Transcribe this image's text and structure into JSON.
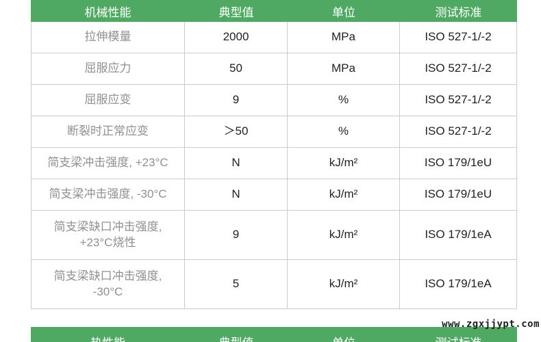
{
  "table_mechanical": {
    "columns": [
      "机械性能",
      "典型值",
      "单位",
      "测试标准"
    ],
    "rows": [
      {
        "property": "拉伸模量",
        "value": "2000",
        "unit": "MPa",
        "standard": "ISO 527-1/-2"
      },
      {
        "property": "屈服应力",
        "value": "50",
        "unit": "MPa",
        "standard": "ISO 527-1/-2"
      },
      {
        "property": "屈服应变",
        "value": "9",
        "unit": "%",
        "standard": "ISO 527-1/-2"
      },
      {
        "property": "断裂时正常应变",
        "value": "＞50",
        "unit": "%",
        "standard": "ISO 527-1/-2"
      },
      {
        "property": "简支梁冲击强度, +23°C",
        "value": "N",
        "unit": "kJ/m²",
        "standard": "ISO 179/1eU"
      },
      {
        "property": "简支梁冲击强度, -30°C",
        "value": "N",
        "unit": "kJ/m²",
        "standard": "ISO 179/1eU"
      },
      {
        "property": "简支梁缺口冲击强度,\n+23°C烧性",
        "value": "9",
        "unit": "kJ/m²",
        "standard": "ISO 179/1eA"
      },
      {
        "property": "简支梁缺口冲击强度,\n-30°C",
        "value": "5",
        "unit": "kJ/m²",
        "standard": "ISO 179/1eA"
      }
    ]
  },
  "table_thermal": {
    "columns": [
      "热性能",
      "典型值",
      "单位",
      "测试标准"
    ]
  },
  "watermark": "www.zgxjjypt.com",
  "colors": {
    "header_green": "#4fa963",
    "border": "#cbcbcb",
    "property_text": "#909090",
    "value_text": "#212121"
  }
}
